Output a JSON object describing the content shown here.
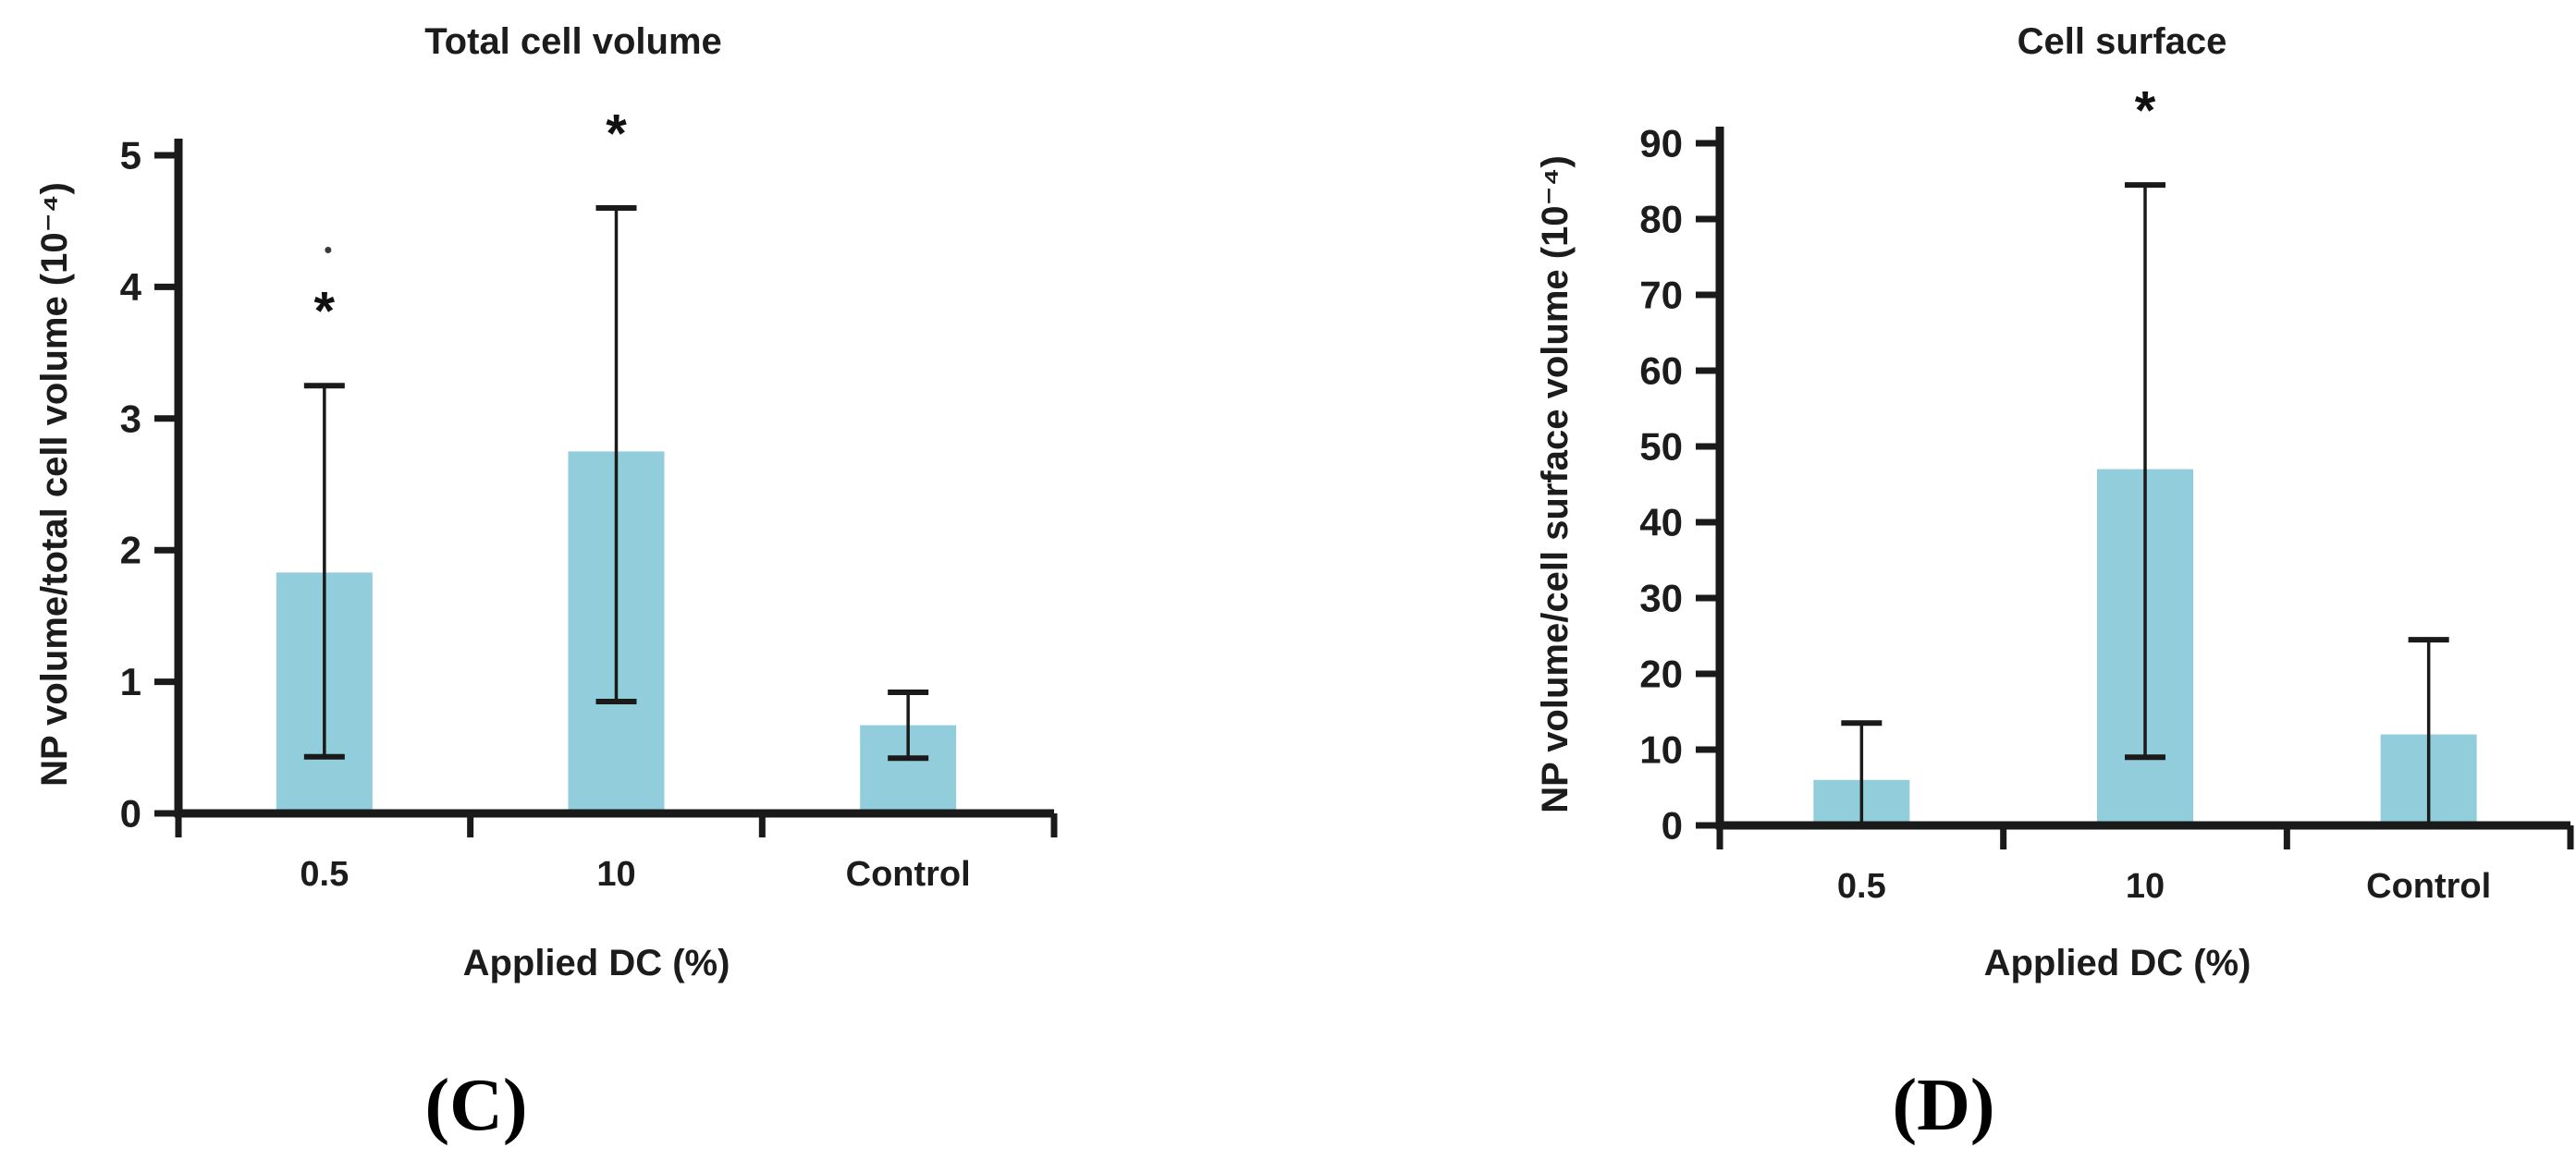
{
  "figure": {
    "panel_c_label": "(C)",
    "panel_d_label": "(D)",
    "bar_color": "#92CDDC",
    "axis_color": "#1a1a1a",
    "error_bar_color": "#1a1a1a",
    "background": "#ffffff"
  },
  "chart_data": [
    {
      "id": "chart-c",
      "type": "bar",
      "title": "Total cell volume",
      "xlabel": "Applied DC (%)",
      "ylabel": "NP volume/total cell volume (10⁻⁴)",
      "categories": [
        "0.5",
        "10",
        "Control"
      ],
      "values": [
        1.83,
        2.75,
        0.67
      ],
      "error_upper_cap": [
        3.25,
        4.6,
        0.92
      ],
      "error_lower_cap": [
        0.43,
        0.85,
        0.42
      ],
      "lower_cap_visible": [
        true,
        true,
        true
      ],
      "significance": [
        "*",
        "*",
        null
      ],
      "stray_dot": {
        "category_index": 0,
        "value": 4.28
      },
      "ylim": [
        0,
        5
      ],
      "yticks": [
        0,
        1,
        2,
        3,
        4,
        5
      ],
      "grid": false,
      "legend": null
    },
    {
      "id": "chart-d",
      "type": "bar",
      "title": "Cell surface",
      "xlabel": "Applied DC (%)",
      "ylabel": "NP volume/cell surface volume (10⁻⁴)",
      "categories": [
        "0.5",
        "10",
        "Control"
      ],
      "values": [
        6,
        47,
        12
      ],
      "error_upper_cap": [
        13.5,
        84.5,
        24.5
      ],
      "error_lower_cap": [
        0,
        9,
        0
      ],
      "lower_cap_visible": [
        false,
        true,
        false
      ],
      "significance": [
        null,
        "*",
        null
      ],
      "stray_dot": null,
      "ylim": [
        0,
        90
      ],
      "yticks": [
        0,
        10,
        20,
        30,
        40,
        50,
        60,
        70,
        80,
        90
      ],
      "grid": false,
      "legend": null
    }
  ]
}
